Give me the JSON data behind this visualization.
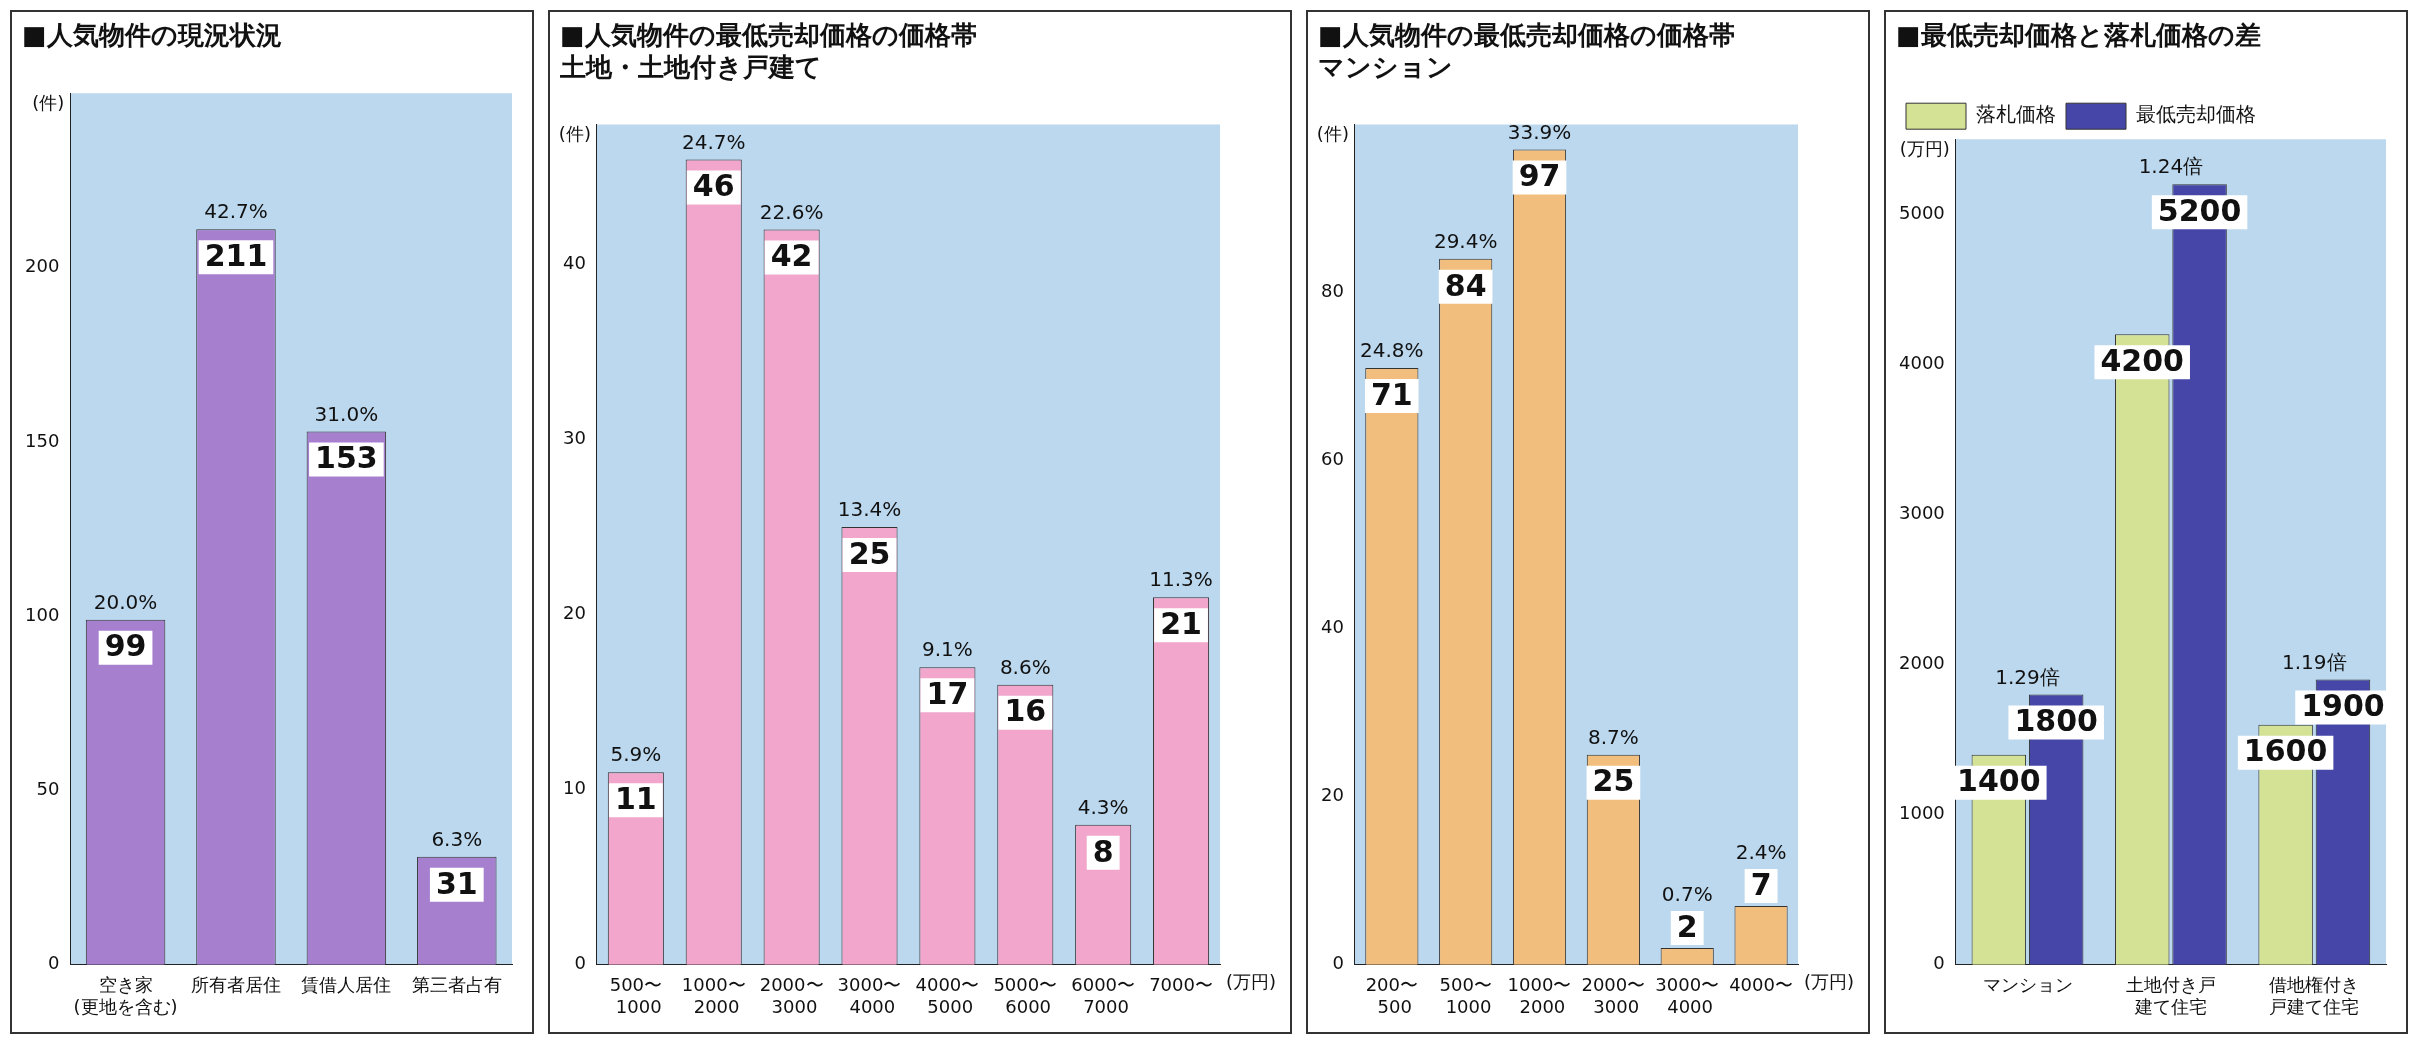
{
  "chart_data": [
    {
      "type": "bar",
      "title": "■人気物件の現況状況",
      "ylabel": "(件)",
      "categories": [
        "空き家(更地を含む)",
        "所有者居住",
        "賃借人居住",
        "第三者占有"
      ],
      "values": [
        99,
        211,
        153,
        31
      ],
      "color": "#a77fcf",
      "ylim": [
        0,
        250
      ],
      "yticks": [
        0,
        50,
        100,
        150,
        200
      ],
      "grid": false,
      "legend": false,
      "data_labels": true,
      "annotations": [
        {
          "text": "20.0%",
          "x": "空き家(更地を含む)",
          "y": 99
        },
        {
          "text": "42.7%",
          "x": "所有者居住",
          "y": 211
        },
        {
          "text": "31.0%",
          "x": "賃借人居住",
          "y": 153
        },
        {
          "text": "6.3%",
          "x": "第三者占有",
          "y": 31
        }
      ]
    },
    {
      "type": "bar",
      "title": "■人気物件の最低売却価格の価格帯土地・土地付き戸建て",
      "ylabel": "(件)",
      "xlabel": "(万円)",
      "categories": [
        "500〜\n1000",
        "1000〜\n2000",
        "2000〜\n3000",
        "3000〜\n4000",
        "4000〜\n5000",
        "5000〜\n6000",
        "6000〜\n7000",
        "7000〜"
      ],
      "values": [
        11,
        46,
        42,
        25,
        17,
        16,
        8,
        21
      ],
      "color": "#f2a6cc",
      "ylim": [
        0,
        48
      ],
      "yticks": [
        0,
        10,
        20,
        30,
        40
      ],
      "grid": false,
      "legend": false,
      "data_labels": true,
      "annotations": [
        {
          "text": "5.9%",
          "x": "500〜\n1000",
          "y": 11
        },
        {
          "text": "24.7%",
          "x": "1000〜\n2000",
          "y": 46
        },
        {
          "text": "22.6%",
          "x": "2000〜\n3000",
          "y": 42
        },
        {
          "text": "13.4%",
          "x": "3000〜\n4000",
          "y": 25
        },
        {
          "text": "9.1%",
          "x": "4000〜\n5000",
          "y": 17
        },
        {
          "text": "8.6%",
          "x": "5000〜\n6000",
          "y": 16
        },
        {
          "text": "4.3%",
          "x": "6000〜\n7000",
          "y": 8
        },
        {
          "text": "11.3%",
          "x": "7000〜",
          "y": 21
        }
      ]
    },
    {
      "type": "bar",
      "title": "■人気物件の最低売却価格の価格帯マンション",
      "ylabel": "(件)",
      "xlabel": "(万円)",
      "categories": [
        "200〜\n500",
        "500〜\n1000",
        "1000〜\n2000",
        "2000〜\n3000",
        "3000〜\n4000",
        "4000〜"
      ],
      "values": [
        71,
        84,
        97,
        25,
        2,
        7
      ],
      "color": "#f2be7e",
      "ylim": [
        0,
        100
      ],
      "yticks": [
        0,
        20,
        40,
        60,
        80
      ],
      "grid": false,
      "legend": false,
      "data_labels": true,
      "annotations": [
        {
          "text": "24.8%",
          "x": "200〜\n500",
          "y": 71
        },
        {
          "text": "29.4%",
          "x": "500〜\n1000",
          "y": 84
        },
        {
          "text": "33.9%",
          "x": "1000〜\n2000",
          "y": 97
        },
        {
          "text": "8.7%",
          "x": "2000〜\n3000",
          "y": 25
        },
        {
          "text": "0.7%",
          "x": "3000〜\n4000",
          "y": 2
        },
        {
          "text": "2.4%",
          "x": "4000〜",
          "y": 7
        }
      ]
    },
    {
      "type": "bar",
      "title": "■最低売却価格と落札価格の差",
      "ylabel": "(万円)",
      "categories": [
        "マンション",
        "土地付き戸建て住宅",
        "借地権付き戸建て住宅"
      ],
      "series": [
        {
          "name": "落札価格",
          "color": "#d3e295",
          "values": [
            1400,
            4200,
            1600
          ]
        },
        {
          "name": "最低売却価格",
          "color": "#4646a8",
          "values": [
            1800,
            5200,
            1900
          ]
        }
      ],
      "ylim": [
        0,
        5500
      ],
      "yticks": [
        0,
        1000,
        2000,
        3000,
        4000,
        5000
      ],
      "grid": false,
      "legend": "top left",
      "data_labels": true,
      "annotations": [
        {
          "text": "1.29倍",
          "x": "マンション",
          "y": 1800
        },
        {
          "text": "1.24倍",
          "x": "土地付き戸建て住宅",
          "y": 5200
        },
        {
          "text": "1.19倍",
          "x": "借地権付き戸建て住宅",
          "y": 1900
        }
      ]
    }
  ]
}
